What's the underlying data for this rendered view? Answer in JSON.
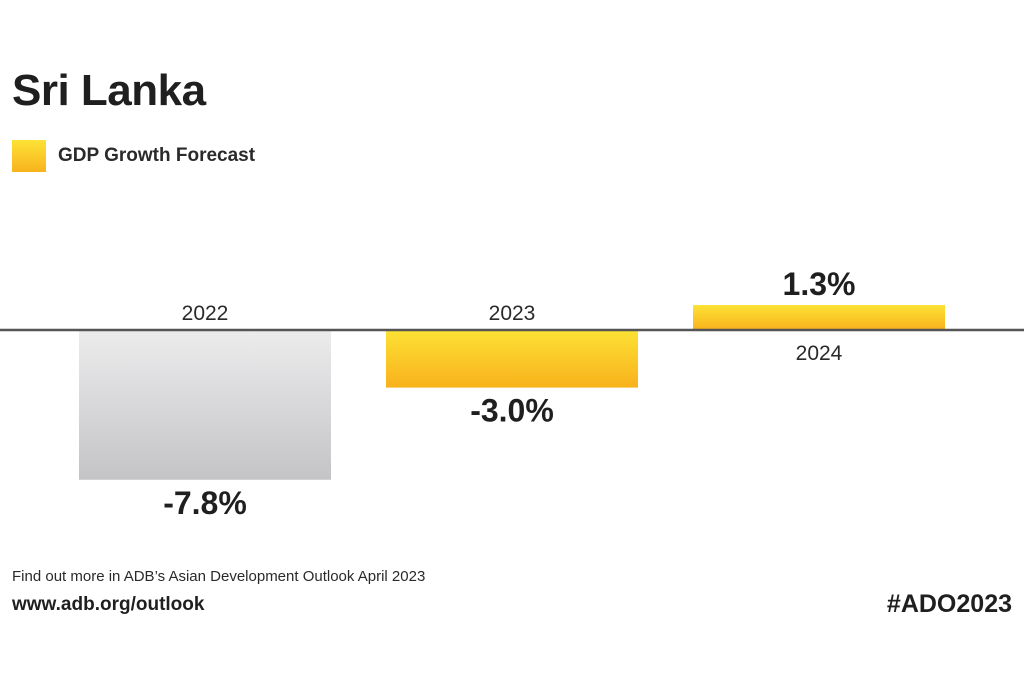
{
  "chart_data": {
    "type": "bar",
    "title": "Sri Lanka",
    "xlabel": "",
    "ylabel": "",
    "legend": {
      "placement": "top-left",
      "entries": [
        "GDP Growth Forecast"
      ]
    },
    "grid": false,
    "categories": [
      "2022",
      "2023",
      "2024"
    ],
    "series": [
      {
        "name": "GDP Growth Forecast",
        "values": [
          -7.8,
          -3.0,
          1.3
        ]
      }
    ],
    "value_labels": [
      "-7.8%",
      "-3.0%",
      "1.3%"
    ],
    "ylim": [
      -8.5,
      3
    ],
    "bar_colors": [
      "#d3d2d4",
      "#fbc829",
      "#fbc829"
    ]
  },
  "colors": {
    "forecast": "#fbc829",
    "historical": "#d3d2d4",
    "axis": "#555555",
    "text": "#1f1f1f"
  },
  "footer": {
    "note": "Find out more in ADB’s Asian Development Outlook April 2023",
    "url": "www.adb.org/outlook",
    "hashtag": "#ADO2023"
  }
}
